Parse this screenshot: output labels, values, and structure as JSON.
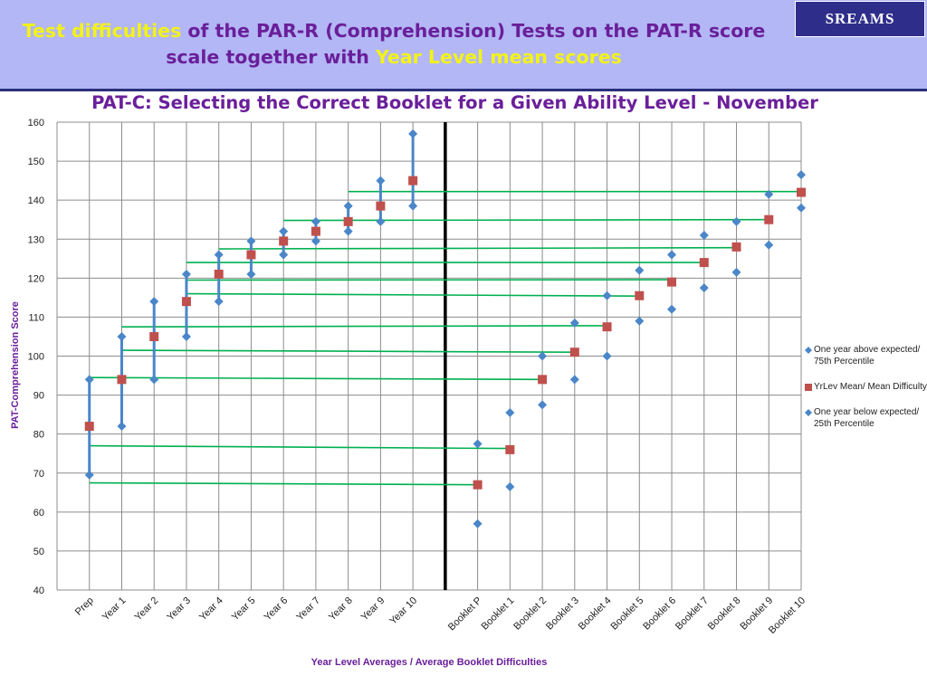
{
  "slide": {
    "title_part1": "Test difficulties",
    "title_part2": " of the PAR-R (Comprehension) Tests on the PAT-R score",
    "title_part3": "scale together with ",
    "title_part4": "Year Level mean scores",
    "logo_text": "SREAMS"
  },
  "colors": {
    "banner": "#b3b7f5",
    "title_text": "#6a1f9a",
    "title_highlight": "#f2f21a",
    "diamond": "#4a86c8",
    "square": "#c0504d",
    "connector": "#00b050",
    "divider": "#000000"
  },
  "chart_data": {
    "type": "scatter",
    "title": "PAT-C: Selecting the Correct Booklet for a Given Ability Level - November",
    "xlabel": "Year Level Averages / Average Booklet Difficulties",
    "ylabel": "PAT-Comprehension  Score",
    "ylim": [
      40,
      160
    ],
    "yticks": [
      40,
      50,
      60,
      70,
      80,
      90,
      100,
      110,
      120,
      130,
      140,
      150,
      160
    ],
    "grid": true,
    "legend_position": "right",
    "categories": [
      "Prep",
      "Year 1",
      "Year 2",
      "Year 3",
      "Year 4",
      "Year 5",
      "Year 6",
      "Year 7",
      "Year 8",
      "Year 9",
      "Year 10",
      "",
      "Booklet P",
      "Booklet 1",
      "Booklet 2",
      "Booklet 3",
      "Booklet 4",
      "Booklet 5",
      "Booklet 6",
      "Booklet 7",
      "Booklet 8",
      "Booklet 9",
      "Booklet 10"
    ],
    "series": [
      {
        "name": "One year above expected/ 75th Percentile",
        "marker": "diamond",
        "values": [
          94,
          105,
          114,
          121,
          126,
          129.5,
          132,
          134.5,
          138.5,
          145,
          157,
          null,
          77.5,
          85.5,
          100,
          108.5,
          115.5,
          122,
          126,
          131,
          134.5,
          141.5,
          146.5
        ]
      },
      {
        "name": "YrLev Mean/ Mean Difficulty",
        "marker": "square",
        "values": [
          82,
          94,
          105,
          114,
          121,
          126,
          129.5,
          132,
          134.5,
          138.5,
          145,
          null,
          67,
          76,
          94,
          101,
          107.5,
          115.5,
          119,
          124,
          128,
          135,
          142
        ]
      },
      {
        "name": "One year below expected/ 25th Percentile",
        "marker": "diamond",
        "values": [
          69.5,
          82,
          94,
          105,
          114,
          121,
          126,
          129.5,
          132,
          134.5,
          138.5,
          null,
          57,
          66.5,
          87.5,
          94,
          100,
          109,
          112,
          117.5,
          121.5,
          128.5,
          138
        ]
      }
    ],
    "connectors": [
      {
        "from": "Prep",
        "to": "Booklet P",
        "y_from": 67.5,
        "y_to": 67
      },
      {
        "from": "Prep",
        "to": "Booklet 1",
        "y_from": 77,
        "y_to": 76.3
      },
      {
        "from": "Prep",
        "to": "Booklet 2",
        "y_from": 94.5,
        "y_to": 94
      },
      {
        "from": "Year 1",
        "to": "Booklet 3",
        "y_from": 101.5,
        "y_to": 101
      },
      {
        "from": "Year 1",
        "to": "Booklet 4",
        "y_from": 107.5,
        "y_to": 107.8
      },
      {
        "from": "Year 3",
        "to": "Booklet 5",
        "y_from": 116,
        "y_to": 115.4
      },
      {
        "from": "Year 3",
        "to": "Booklet 6",
        "y_from": 119.5,
        "y_to": 119.6
      },
      {
        "from": "Year 3",
        "to": "Booklet 7",
        "y_from": 124,
        "y_to": 124
      },
      {
        "from": "Year 4",
        "to": "Booklet 8",
        "y_from": 127.5,
        "y_to": 127.8
      },
      {
        "from": "Year 6",
        "to": "Booklet 9",
        "y_from": 134.8,
        "y_to": 135
      },
      {
        "from": "Year 8",
        "to": "Booklet 10",
        "y_from": 142.2,
        "y_to": 142.2
      }
    ],
    "divider_between": [
      "Year 10",
      "Booklet P"
    ]
  }
}
